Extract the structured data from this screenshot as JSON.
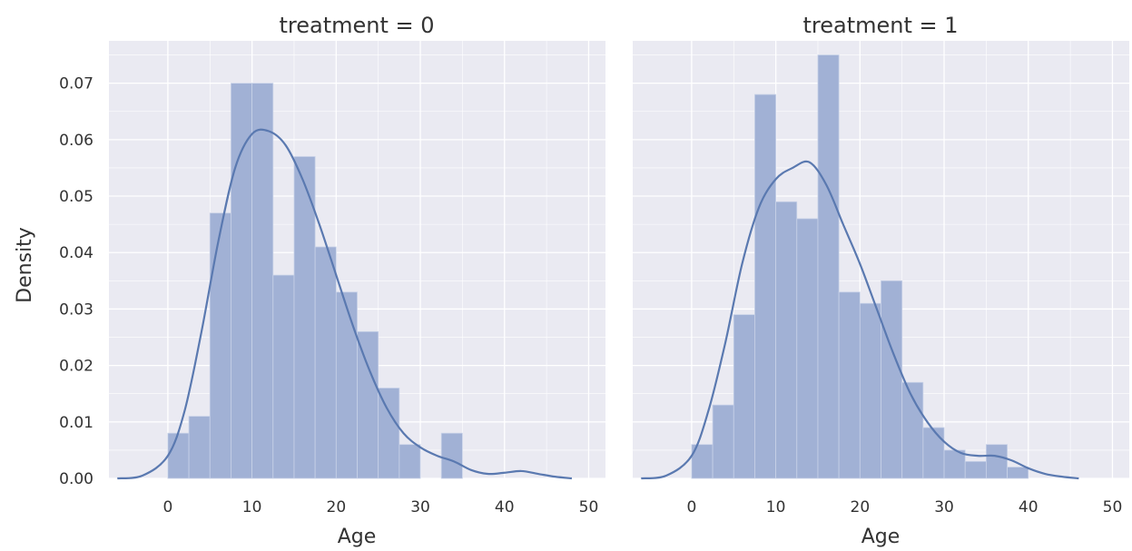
{
  "chart_data": {
    "type": "histogram with KDE (faceted)",
    "ylabel": "Density",
    "yticks": [
      "0.00",
      "0.01",
      "0.02",
      "0.03",
      "0.04",
      "0.05",
      "0.06",
      "0.07"
    ],
    "xticks": [
      "0",
      "10",
      "20",
      "30",
      "40",
      "50"
    ],
    "xlim": [
      -7,
      52
    ],
    "ylim": [
      0,
      0.0775
    ],
    "grid": true,
    "bin_width": 2.5,
    "colors": {
      "background": "#eaeaf2",
      "grid": "#ffffff",
      "bar": "#a1b1d5",
      "kde_line": "#5a79b0"
    },
    "panels": [
      {
        "title": "treatment = 0",
        "xlabel": "Age",
        "bins": [
          {
            "x0": 0,
            "x1": 2.5,
            "density": 0.008
          },
          {
            "x0": 2.5,
            "x1": 5,
            "density": 0.011
          },
          {
            "x0": 5,
            "x1": 7.5,
            "density": 0.047
          },
          {
            "x0": 7.5,
            "x1": 10,
            "density": 0.07
          },
          {
            "x0": 10,
            "x1": 12.5,
            "density": 0.07
          },
          {
            "x0": 12.5,
            "x1": 15,
            "density": 0.036
          },
          {
            "x0": 15,
            "x1": 17.5,
            "density": 0.057
          },
          {
            "x0": 17.5,
            "x1": 20,
            "density": 0.041
          },
          {
            "x0": 20,
            "x1": 22.5,
            "density": 0.033
          },
          {
            "x0": 22.5,
            "x1": 25,
            "density": 0.026
          },
          {
            "x0": 25,
            "x1": 27.5,
            "density": 0.016
          },
          {
            "x0": 27.5,
            "x1": 30,
            "density": 0.006
          },
          {
            "x0": 30,
            "x1": 32.5,
            "density": 0.0
          },
          {
            "x0": 32.5,
            "x1": 35,
            "density": 0.008
          },
          {
            "x0": 35,
            "x1": 37.5,
            "density": 0.0
          },
          {
            "x0": 37.5,
            "x1": 40,
            "density": 0.0
          },
          {
            "x0": 40,
            "x1": 42.5,
            "density": 0.0
          },
          {
            "x0": 42.5,
            "x1": 45,
            "density": 0.0
          }
        ],
        "kde": {
          "x": [
            -6,
            -3,
            0,
            2,
            4,
            6,
            8,
            10,
            12,
            14,
            16,
            18,
            20,
            22,
            24,
            26,
            28,
            30,
            32,
            34,
            36,
            38,
            40,
            42,
            44,
            46,
            48
          ],
          "y": [
            0.0,
            0.0005,
            0.004,
            0.012,
            0.026,
            0.042,
            0.055,
            0.061,
            0.0615,
            0.059,
            0.053,
            0.045,
            0.036,
            0.027,
            0.019,
            0.0125,
            0.008,
            0.0055,
            0.004,
            0.003,
            0.0015,
            0.0008,
            0.001,
            0.0013,
            0.0008,
            0.0003,
            0.0
          ]
        }
      },
      {
        "title": "treatment = 1",
        "xlabel": "Age",
        "bins": [
          {
            "x0": 0,
            "x1": 2.5,
            "density": 0.006
          },
          {
            "x0": 2.5,
            "x1": 5,
            "density": 0.013
          },
          {
            "x0": 5,
            "x1": 7.5,
            "density": 0.029
          },
          {
            "x0": 7.5,
            "x1": 10,
            "density": 0.068
          },
          {
            "x0": 10,
            "x1": 12.5,
            "density": 0.049
          },
          {
            "x0": 12.5,
            "x1": 15,
            "density": 0.046
          },
          {
            "x0": 15,
            "x1": 17.5,
            "density": 0.075
          },
          {
            "x0": 17.5,
            "x1": 20,
            "density": 0.033
          },
          {
            "x0": 20,
            "x1": 22.5,
            "density": 0.031
          },
          {
            "x0": 22.5,
            "x1": 25,
            "density": 0.035
          },
          {
            "x0": 25,
            "x1": 27.5,
            "density": 0.017
          },
          {
            "x0": 27.5,
            "x1": 30,
            "density": 0.009
          },
          {
            "x0": 30,
            "x1": 32.5,
            "density": 0.005
          },
          {
            "x0": 32.5,
            "x1": 35,
            "density": 0.003
          },
          {
            "x0": 35,
            "x1": 37.5,
            "density": 0.006
          },
          {
            "x0": 37.5,
            "x1": 40,
            "density": 0.002
          }
        ],
        "kde": {
          "x": [
            -6,
            -3,
            0,
            2,
            4,
            6,
            8,
            10,
            12,
            14,
            16,
            18,
            20,
            22,
            24,
            26,
            28,
            30,
            32,
            34,
            36,
            38,
            40,
            42,
            44,
            46
          ],
          "y": [
            0.0,
            0.0005,
            0.004,
            0.012,
            0.024,
            0.038,
            0.048,
            0.053,
            0.055,
            0.056,
            0.052,
            0.045,
            0.038,
            0.03,
            0.022,
            0.015,
            0.01,
            0.0065,
            0.0045,
            0.004,
            0.004,
            0.0032,
            0.0018,
            0.0008,
            0.0003,
            0.0
          ]
        }
      }
    ]
  }
}
